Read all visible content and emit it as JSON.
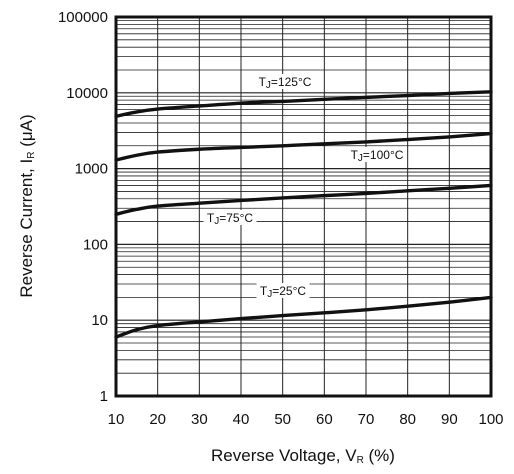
{
  "chart_data": {
    "type": "line",
    "xlabel": {
      "main": "Reverse Voltage, V",
      "sub": "R",
      "suffix": " (%)"
    },
    "ylabel": {
      "main": "Reverse Current, I",
      "sub": "R",
      "suffix": " (μA)"
    },
    "x_ticks": [
      "10",
      "20",
      "30",
      "40",
      "50",
      "60",
      "70",
      "80",
      "90",
      "100"
    ],
    "y_ticks": [
      "1",
      "10",
      "100",
      "1000",
      "10000",
      "100000"
    ],
    "xlim": [
      10,
      100
    ],
    "ylim": [
      1,
      100000
    ],
    "yscale": "log",
    "grid": true,
    "series": [
      {
        "name": "TJ=125°C",
        "label": {
          "pre": "T",
          "sub": "J",
          "post": "=125°C"
        },
        "x": [
          10,
          15,
          20,
          30,
          40,
          50,
          60,
          70,
          80,
          90,
          100
        ],
        "y": [
          4900,
          5600,
          6100,
          6700,
          7300,
          7700,
          8200,
          8700,
          9200,
          9800,
          10300
        ]
      },
      {
        "name": "TJ=100°C",
        "label": {
          "pre": "T",
          "sub": "J",
          "post": "=100°C"
        },
        "x": [
          10,
          15,
          20,
          30,
          40,
          50,
          60,
          70,
          80,
          90,
          100
        ],
        "y": [
          1300,
          1500,
          1650,
          1800,
          1900,
          2000,
          2120,
          2250,
          2420,
          2620,
          2900
        ]
      },
      {
        "name": "TJ=75°C",
        "label": {
          "pre": "T",
          "sub": "J",
          "post": "=75°C"
        },
        "x": [
          10,
          15,
          20,
          30,
          40,
          50,
          60,
          70,
          80,
          90,
          100
        ],
        "y": [
          250,
          290,
          320,
          350,
          380,
          410,
          440,
          470,
          510,
          550,
          600
        ]
      },
      {
        "name": "TJ=25°C",
        "label": {
          "pre": "T",
          "sub": "J",
          "post": "=25°C"
        },
        "x": [
          10,
          15,
          20,
          30,
          40,
          50,
          60,
          70,
          80,
          90,
          100
        ],
        "y": [
          6.0,
          7.5,
          8.5,
          9.5,
          10.5,
          11.5,
          12.5,
          13.7,
          15.3,
          17.3,
          20.0
        ]
      }
    ]
  }
}
